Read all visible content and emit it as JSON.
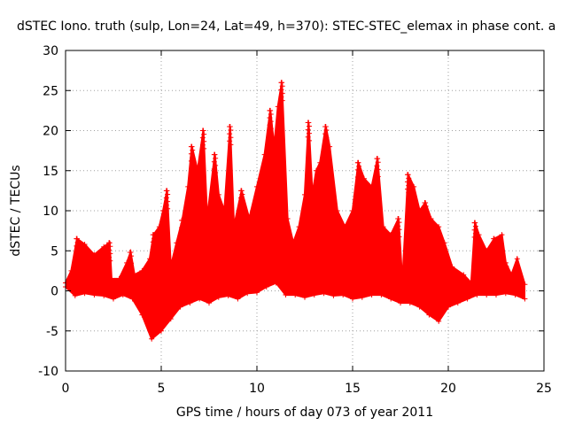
{
  "chart_data": {
    "type": "scatter",
    "title": "dSTEC Iono. truth (sulp, Lon=24, Lat=49, h=370): STEC-STEC_elemax in phase cont. a",
    "xlabel": "GPS time / hours of day 073 of year 2011",
    "ylabel": "dSTEC  / TECUs",
    "xlim": [
      0,
      25
    ],
    "ylim": [
      -10,
      30
    ],
    "xticks": [
      0,
      5,
      10,
      15,
      20,
      25
    ],
    "yticks": [
      -10,
      -5,
      0,
      5,
      10,
      15,
      20,
      25,
      30
    ],
    "xtick_labels": [
      "0",
      "5",
      "10",
      "15",
      "20",
      "25"
    ],
    "ytick_labels": [
      "-10",
      "-5",
      "0",
      "5",
      "10",
      "15",
      "20",
      "25",
      "30"
    ],
    "grid": true,
    "marker": "+",
    "series_color": "#ff0000",
    "series": [
      {
        "upper_envelope": [
          [
            0.0,
            1.0
          ],
          [
            0.3,
            2.5
          ],
          [
            0.6,
            6.5
          ],
          [
            1.0,
            5.8
          ],
          [
            1.5,
            4.5
          ],
          [
            2.0,
            5.5
          ],
          [
            2.3,
            6.0
          ],
          [
            2.4,
            1.5
          ],
          [
            2.8,
            1.5
          ],
          [
            3.2,
            3.5
          ],
          [
            3.4,
            4.8
          ],
          [
            3.6,
            2.0
          ],
          [
            4.0,
            2.5
          ],
          [
            4.4,
            4.0
          ],
          [
            4.6,
            7.0
          ],
          [
            4.9,
            8.0
          ],
          [
            5.1,
            10.0
          ],
          [
            5.3,
            12.5
          ],
          [
            5.5,
            3.0
          ],
          [
            5.8,
            6.0
          ],
          [
            6.1,
            8.8
          ],
          [
            6.4,
            13.0
          ],
          [
            6.6,
            18.0
          ],
          [
            6.9,
            15.0
          ],
          [
            7.2,
            20.0
          ],
          [
            7.4,
            9.0
          ],
          [
            7.8,
            17.0
          ],
          [
            8.0,
            12.0
          ],
          [
            8.3,
            10.0
          ],
          [
            8.6,
            20.5
          ],
          [
            8.8,
            8.0
          ],
          [
            9.2,
            12.5
          ],
          [
            9.6,
            9.0
          ],
          [
            10.0,
            13.0
          ],
          [
            10.4,
            17.0
          ],
          [
            10.7,
            22.5
          ],
          [
            10.9,
            18.0
          ],
          [
            11.1,
            23.0
          ],
          [
            11.3,
            26.0
          ],
          [
            11.6,
            9.0
          ],
          [
            11.9,
            6.0
          ],
          [
            12.2,
            8.0
          ],
          [
            12.5,
            12.0
          ],
          [
            12.7,
            21.0
          ],
          [
            12.9,
            12.0
          ],
          [
            13.1,
            15.0
          ],
          [
            13.3,
            16.0
          ],
          [
            13.6,
            20.5
          ],
          [
            13.8,
            18.0
          ],
          [
            14.2,
            10.0
          ],
          [
            14.6,
            8.0
          ],
          [
            15.0,
            10.0
          ],
          [
            15.3,
            16.0
          ],
          [
            15.6,
            14.0
          ],
          [
            16.0,
            13.0
          ],
          [
            16.3,
            16.5
          ],
          [
            16.6,
            8.0
          ],
          [
            17.0,
            7.0
          ],
          [
            17.4,
            9.0
          ],
          [
            17.6,
            1.0
          ],
          [
            17.9,
            14.5
          ],
          [
            18.2,
            13.0
          ],
          [
            18.5,
            10.0
          ],
          [
            18.8,
            11.0
          ],
          [
            19.1,
            9.0
          ],
          [
            19.5,
            8.0
          ],
          [
            19.8,
            6.0
          ],
          [
            20.2,
            3.0
          ],
          [
            20.8,
            2.0
          ],
          [
            21.2,
            1.0
          ],
          [
            21.4,
            8.5
          ],
          [
            21.6,
            7.0
          ],
          [
            22.0,
            5.0
          ],
          [
            22.4,
            6.5
          ],
          [
            22.8,
            7.0
          ],
          [
            23.0,
            3.5
          ],
          [
            23.3,
            2.0
          ],
          [
            23.6,
            4.0
          ],
          [
            24.0,
            0.8
          ]
        ],
        "lower_envelope": [
          [
            0.0,
            0.5
          ],
          [
            0.5,
            -0.6
          ],
          [
            1.0,
            -0.3
          ],
          [
            1.5,
            -0.5
          ],
          [
            2.0,
            -0.6
          ],
          [
            2.5,
            -1.0
          ],
          [
            3.0,
            -0.5
          ],
          [
            3.5,
            -1.0
          ],
          [
            4.0,
            -3.0
          ],
          [
            4.5,
            -6.0
          ],
          [
            5.0,
            -5.0
          ],
          [
            5.5,
            -3.5
          ],
          [
            6.0,
            -2.0
          ],
          [
            6.5,
            -1.5
          ],
          [
            7.0,
            -1.0
          ],
          [
            7.5,
            -1.5
          ],
          [
            8.0,
            -0.8
          ],
          [
            8.5,
            -0.6
          ],
          [
            9.0,
            -1.0
          ],
          [
            9.5,
            -0.3
          ],
          [
            10.0,
            -0.2
          ],
          [
            10.5,
            0.5
          ],
          [
            11.0,
            1.0
          ],
          [
            11.5,
            -0.5
          ],
          [
            12.0,
            -0.5
          ],
          [
            12.5,
            -0.8
          ],
          [
            13.0,
            -0.5
          ],
          [
            13.5,
            -0.3
          ],
          [
            14.0,
            -0.6
          ],
          [
            14.5,
            -0.5
          ],
          [
            15.0,
            -1.0
          ],
          [
            15.5,
            -0.8
          ],
          [
            16.0,
            -0.5
          ],
          [
            16.5,
            -0.5
          ],
          [
            17.0,
            -1.0
          ],
          [
            17.5,
            -1.5
          ],
          [
            18.0,
            -1.5
          ],
          [
            18.5,
            -2.0
          ],
          [
            19.0,
            -3.0
          ],
          [
            19.5,
            -3.8
          ],
          [
            20.0,
            -2.0
          ],
          [
            20.5,
            -1.5
          ],
          [
            21.0,
            -1.0
          ],
          [
            21.5,
            -0.5
          ],
          [
            22.0,
            -0.5
          ],
          [
            22.5,
            -0.5
          ],
          [
            23.0,
            -0.3
          ],
          [
            23.5,
            -0.5
          ],
          [
            24.0,
            -1.0
          ]
        ],
        "spikes": [
          [
            0.6,
            6.5
          ],
          [
            2.3,
            6.0
          ],
          [
            3.4,
            4.8
          ],
          [
            4.6,
            7.0
          ],
          [
            5.3,
            12.5
          ],
          [
            6.1,
            8.8
          ],
          [
            6.6,
            18.0
          ],
          [
            7.2,
            20.0
          ],
          [
            7.8,
            17.0
          ],
          [
            8.6,
            20.5
          ],
          [
            9.2,
            12.5
          ],
          [
            10.7,
            22.5
          ],
          [
            11.3,
            26.0
          ],
          [
            12.7,
            21.0
          ],
          [
            13.6,
            20.5
          ],
          [
            15.3,
            16.0
          ],
          [
            16.3,
            16.5
          ],
          [
            17.4,
            9.0
          ],
          [
            17.9,
            14.5
          ],
          [
            18.8,
            11.0
          ],
          [
            21.4,
            8.5
          ],
          [
            22.4,
            6.5
          ],
          [
            23.0,
            3.5
          ]
        ]
      }
    ]
  }
}
